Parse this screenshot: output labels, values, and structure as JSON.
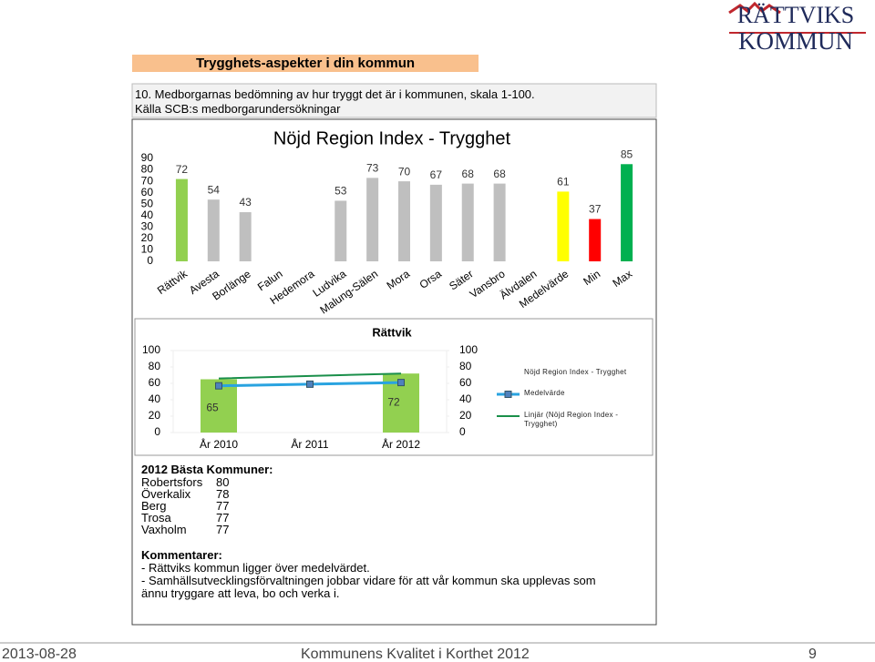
{
  "logo": {
    "line1": "RÄTTVIKS",
    "line2": "KOMMUN"
  },
  "header": {
    "title": "Trygghets-aspekter i din kommun",
    "question": "10. Medborgarnas bedömning av hur tryggt det är i kommunen, skala 1-100.",
    "source": "Källa SCB:s medborgarundersökningar"
  },
  "chart_data": [
    {
      "type": "bar",
      "title": "Nöjd Region Index - Trygghet",
      "categories": [
        "Rättvik",
        "Avesta",
        "Borlänge",
        "Falun",
        "Hedemora",
        "Ludvika",
        "Malung-Sälen",
        "Mora",
        "Orsa",
        "Säter",
        "Vansbro",
        "Älvdalen",
        "Medelvärde",
        "Min",
        "Max"
      ],
      "values": [
        72,
        54,
        43,
        null,
        null,
        53,
        73,
        70,
        67,
        68,
        68,
        null,
        61,
        37,
        85
      ],
      "colors": [
        "#92d050",
        "#bfbfbf",
        "#bfbfbf",
        "#bfbfbf",
        "#bfbfbf",
        "#bfbfbf",
        "#bfbfbf",
        "#bfbfbf",
        "#bfbfbf",
        "#bfbfbf",
        "#bfbfbf",
        "#bfbfbf",
        "#ffff00",
        "#ff0000",
        "#00b050"
      ],
      "ylim": [
        0,
        90
      ],
      "yticks": [
        0,
        10,
        20,
        30,
        40,
        50,
        60,
        70,
        80,
        90
      ],
      "grid": false
    },
    {
      "type": "combo",
      "title": "Rättvik",
      "categories": [
        "År 2010",
        "År 2011",
        "År 2012"
      ],
      "series": [
        {
          "name": "Nöjd Region Index - Trygghet",
          "type": "bar",
          "color": "#92d050",
          "values": [
            65,
            null,
            72
          ]
        },
        {
          "name": "Medelvärde",
          "type": "line",
          "color": "#29a3e0",
          "marker_color": "#4f81bd",
          "values": [
            57,
            59,
            61
          ]
        },
        {
          "name": "Linjär (Nöjd Region Index - Trygghet)",
          "type": "line",
          "color": "#1a8f4a",
          "values": [
            66,
            69,
            72
          ]
        }
      ],
      "ylim": [
        0,
        100
      ],
      "yticks": [
        0,
        20,
        40,
        60,
        80,
        100
      ],
      "y2lim": [
        0,
        100
      ],
      "y2ticks": [
        0,
        20,
        40,
        60,
        80,
        100
      ],
      "legend": "right"
    }
  ],
  "best": {
    "title": "2012 Bästa Kommuner:",
    "rows": [
      [
        "Robertsfors",
        80
      ],
      [
        "Överkalix",
        78
      ],
      [
        "Berg",
        77
      ],
      [
        "Trosa",
        77
      ],
      [
        "Vaxholm",
        77
      ]
    ]
  },
  "comments": {
    "title": "Kommentarer:",
    "lines": [
      "- Rättviks kommun ligger över medelvärdet.",
      "- Samhällsutvecklingsförvaltningen jobbar vidare för att vår kommun ska upplevas som ännu tryggare att leva, bo och verka i."
    ]
  },
  "footer": {
    "date": "2013-08-28",
    "center": "Kommunens Kvalitet i Korthet 2012",
    "page": "9"
  }
}
